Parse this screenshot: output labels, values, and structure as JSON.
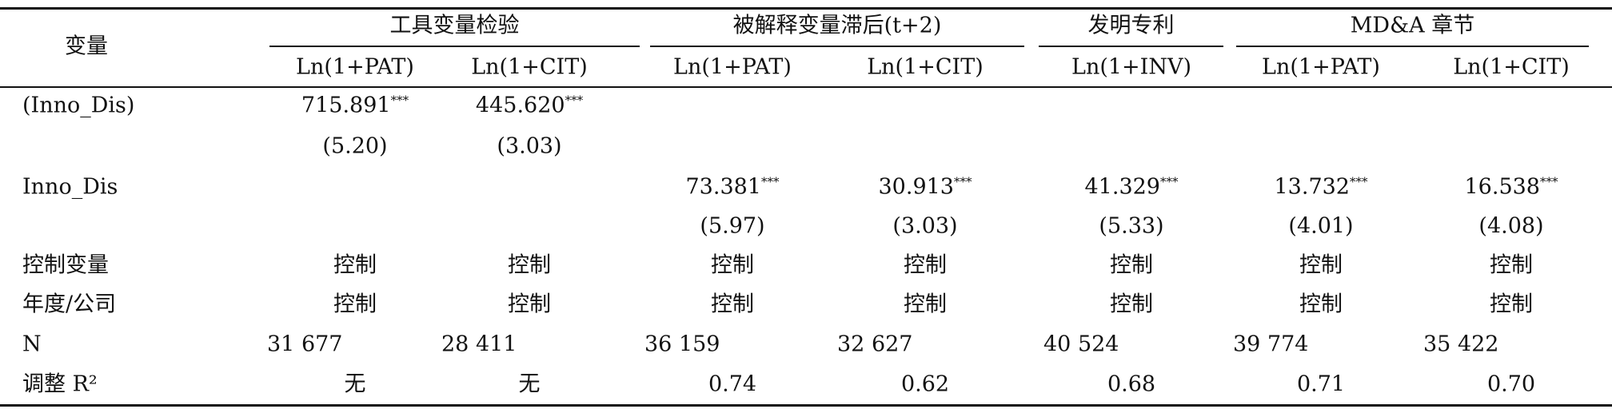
{
  "table": {
    "row_header": "变量",
    "groups": [
      "工具变量检验",
      "被解释变量滞后(t+2)",
      "发明专利",
      "MD&A 章节"
    ],
    "columns": [
      "Ln(1+PAT)",
      "Ln(1+CIT)",
      "Ln(1+PAT)",
      "Ln(1+CIT)",
      "Ln(1+INV)",
      "Ln(1+PAT)",
      "Ln(1+CIT)"
    ],
    "rows": [
      {
        "label": "(Inno_Dis)",
        "cells": [
          {
            "value": "715.891",
            "stars": "***"
          },
          {
            "value": "445.620",
            "stars": "***"
          },
          null,
          null,
          null,
          null,
          null
        ]
      },
      {
        "cells": [
          {
            "value": "(5.20)"
          },
          {
            "value": "(3.03)"
          },
          null,
          null,
          null,
          null,
          null
        ]
      },
      {
        "label": "Inno_Dis",
        "cells": [
          null,
          null,
          {
            "value": "73.381",
            "stars": "***"
          },
          {
            "value": "30.913",
            "stars": "***"
          },
          {
            "value": "41.329",
            "stars": "***"
          },
          {
            "value": "13.732",
            "stars": "***"
          },
          {
            "value": "16.538",
            "stars": "***"
          }
        ]
      },
      {
        "cells": [
          null,
          null,
          {
            "value": "(5.97)"
          },
          {
            "value": "(3.03)"
          },
          {
            "value": "(5.33)"
          },
          {
            "value": "(4.01)"
          },
          {
            "value": "(4.08)"
          }
        ]
      },
      {
        "label": "控制变量",
        "cells": [
          {
            "value": "控制"
          },
          {
            "value": "控制"
          },
          {
            "value": "控制"
          },
          {
            "value": "控制"
          },
          {
            "value": "控制"
          },
          {
            "value": "控制"
          },
          {
            "value": "控制"
          }
        ]
      },
      {
        "label": "年度/公司",
        "cells": [
          {
            "value": "控制"
          },
          {
            "value": "控制"
          },
          {
            "value": "控制"
          },
          {
            "value": "控制"
          },
          {
            "value": "控制"
          },
          {
            "value": "控制"
          },
          {
            "value": "控制"
          }
        ]
      },
      {
        "label": "N",
        "cells": [
          {
            "value": "31 677"
          },
          {
            "value": "28 411"
          },
          {
            "value": "36 159"
          },
          {
            "value": "32 627"
          },
          {
            "value": "40 524"
          },
          {
            "value": "39 774"
          },
          {
            "value": "35 422"
          }
        ]
      },
      {
        "label": "调整 R²",
        "cells": [
          {
            "value": "无"
          },
          {
            "value": "无"
          },
          {
            "value": "0.74"
          },
          {
            "value": "0.62"
          },
          {
            "value": "0.68"
          },
          {
            "value": "0.71"
          },
          {
            "value": "0.70"
          }
        ]
      }
    ]
  }
}
